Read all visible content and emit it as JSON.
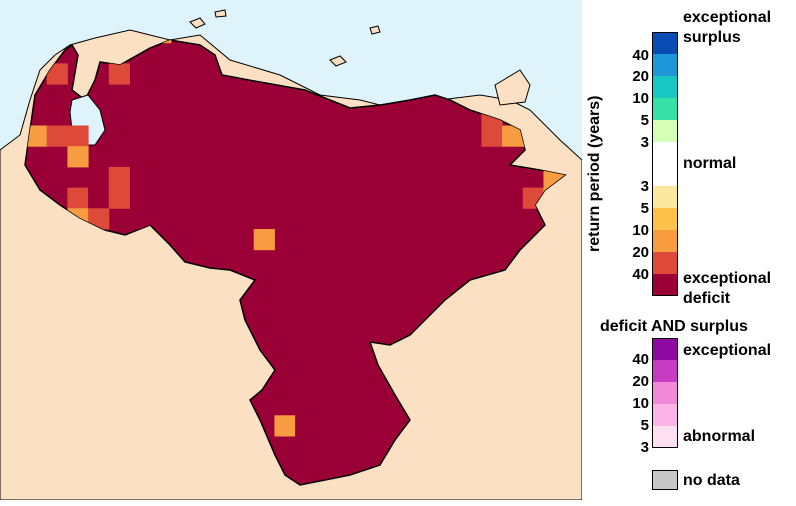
{
  "map": {
    "ocean_color": "#dff3fb",
    "land_color": "#fce0c4",
    "region_color": "#9a0036",
    "cells": [
      {
        "c": 6,
        "r": 0,
        "k": "d10"
      },
      {
        "c": 1,
        "r": 2,
        "k": "d20"
      },
      {
        "c": 4,
        "r": 2,
        "k": "d20"
      },
      {
        "c": 0,
        "r": 5,
        "k": "d10"
      },
      {
        "c": 1,
        "r": 5,
        "k": "d20"
      },
      {
        "c": 2,
        "r": 5,
        "k": "d20"
      },
      {
        "c": 2,
        "r": 6,
        "k": "d10"
      },
      {
        "c": 5,
        "r": 6,
        "k": "d40"
      },
      {
        "c": 4,
        "r": 7,
        "k": "d20"
      },
      {
        "c": 11,
        "r": 7,
        "k": "d40"
      },
      {
        "c": 12,
        "r": 7,
        "k": "d40"
      },
      {
        "c": 2,
        "r": 8,
        "k": "d20"
      },
      {
        "c": 3,
        "r": 8,
        "k": "d40"
      },
      {
        "c": 4,
        "r": 8,
        "k": "d20"
      },
      {
        "c": 10,
        "r": 8,
        "k": "d40"
      },
      {
        "c": 11,
        "r": 8,
        "k": "d40"
      },
      {
        "c": 12,
        "r": 8,
        "k": "d40"
      },
      {
        "c": 2,
        "r": 9,
        "k": "d10"
      },
      {
        "c": 3,
        "r": 9,
        "k": "d20"
      },
      {
        "c": 5,
        "r": 9,
        "k": "d40"
      },
      {
        "c": 11,
        "r": 9,
        "k": "d40"
      },
      {
        "c": 12,
        "r": 9,
        "k": "d40"
      },
      {
        "c": 9,
        "r": 10,
        "k": "d40"
      },
      {
        "c": 10,
        "r": 10,
        "k": "d40"
      },
      {
        "c": 11,
        "r": 10,
        "k": "d10"
      },
      {
        "c": 13,
        "r": 10,
        "k": "d40"
      },
      {
        "c": 14,
        "r": 10,
        "k": "d40"
      },
      {
        "c": 13,
        "r": 11,
        "k": "d40"
      },
      {
        "c": 14,
        "r": 11,
        "k": "d40"
      },
      {
        "c": 12,
        "r": 12,
        "k": "d40"
      },
      {
        "c": 13,
        "r": 12,
        "k": "d40"
      },
      {
        "c": 14,
        "r": 12,
        "k": "d40"
      },
      {
        "c": 15,
        "r": 12,
        "k": "d40"
      },
      {
        "c": 12,
        "r": 13,
        "k": "d40"
      },
      {
        "c": 13,
        "r": 13,
        "k": "d40"
      },
      {
        "c": 12,
        "r": 19,
        "k": "d10"
      },
      {
        "c": 13,
        "r": 19,
        "k": "d40"
      },
      {
        "c": 14,
        "r": 19,
        "k": "d40"
      },
      {
        "c": 15,
        "r": 19,
        "k": "d40"
      },
      {
        "c": 13,
        "r": 20,
        "k": "d40"
      },
      {
        "c": 14,
        "r": 20,
        "k": "d40"
      },
      {
        "c": 22,
        "r": 5,
        "k": "d20"
      },
      {
        "c": 23,
        "r": 5,
        "k": "d10"
      },
      {
        "c": 24,
        "r": 5,
        "k": "d5"
      },
      {
        "c": 22,
        "r": 4,
        "k": "d20"
      },
      {
        "c": 24,
        "r": 8,
        "k": "d20"
      },
      {
        "c": 25,
        "r": 8,
        "k": "d10"
      },
      {
        "c": 26,
        "r": 8,
        "k": "d10"
      },
      {
        "c": 25,
        "r": 7,
        "k": "d10"
      }
    ]
  },
  "legend": {
    "axis_title": "return period (years)",
    "main_scale": [
      {
        "key": "s40",
        "color": "#0a4bb4"
      },
      {
        "key": "s20",
        "color": "#1e96d8"
      },
      {
        "key": "s10",
        "color": "#18c6c4"
      },
      {
        "key": "s5",
        "color": "#38e0a8"
      },
      {
        "key": "s3",
        "color": "#d4ffb4"
      },
      {
        "key": "normal",
        "color": "#ffffff"
      },
      {
        "key": "d3",
        "color": "#fde8a0"
      },
      {
        "key": "d5",
        "color": "#fcc24c"
      },
      {
        "key": "d10",
        "color": "#f89c42"
      },
      {
        "key": "d20",
        "color": "#dd4a3a"
      },
      {
        "key": "d40",
        "color": "#9a0036"
      }
    ],
    "surplus_ticks": [
      "40",
      "20",
      "10",
      "5",
      "3"
    ],
    "deficit_ticks": [
      "3",
      "5",
      "10",
      "20",
      "40"
    ],
    "exceptional_surplus_line1": "exceptional",
    "exceptional_surplus_line2": "surplus",
    "normal_label": "normal",
    "exceptional_deficit_line1": "exceptional",
    "exceptional_deficit_line2": "deficit",
    "both_title": "deficit AND surplus",
    "both_scale": [
      {
        "key": "b40",
        "color": "#8e0aa0"
      },
      {
        "key": "b20",
        "color": "#c83cc4"
      },
      {
        "key": "b10",
        "color": "#f08ad8"
      },
      {
        "key": "b5",
        "color": "#fbb4e6"
      },
      {
        "key": "b3",
        "color": "#fde0f2"
      }
    ],
    "both_ticks": [
      "40",
      "20",
      "10",
      "5",
      "3"
    ],
    "both_top_label": "exceptional",
    "both_bottom_label": "abnormal",
    "no_data_color": "#c8c8c8",
    "no_data_label": "no data"
  }
}
